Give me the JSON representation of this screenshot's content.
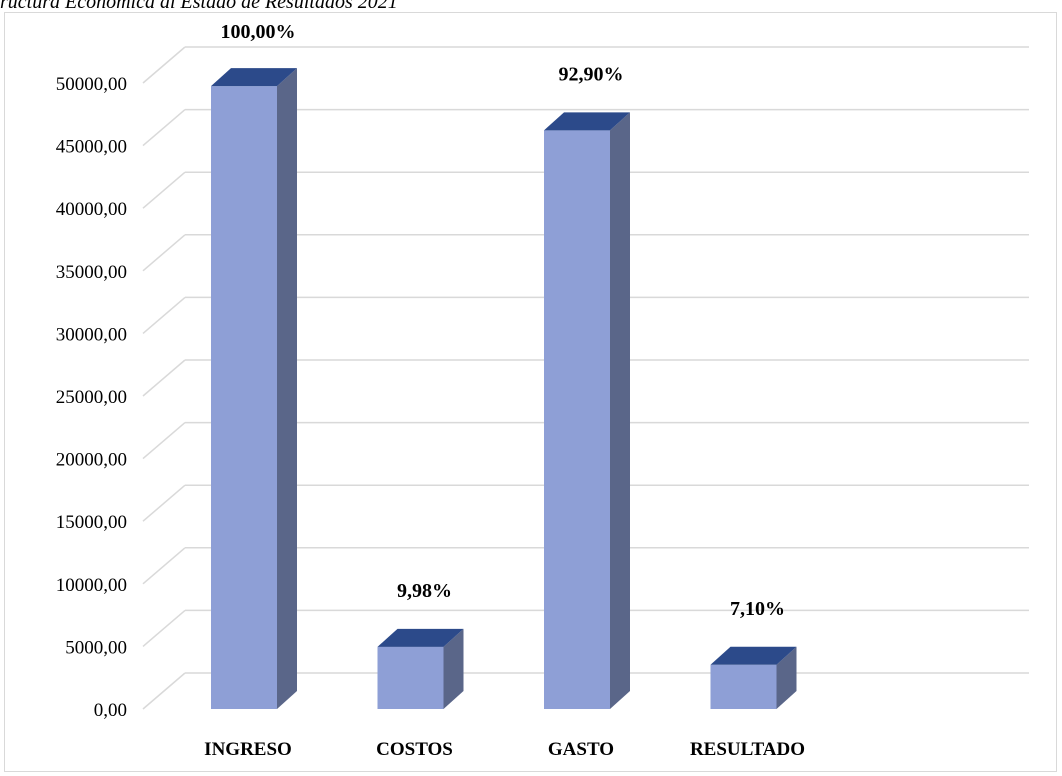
{
  "caption": "ructura Económica al Estado de Resultados 2021",
  "chart_data": {
    "type": "bar",
    "style": "3d-column",
    "title": "",
    "xlabel": "",
    "ylabel": "",
    "categories": [
      "INGRESO",
      "COSTOS",
      "GASTO",
      "RESULTADO"
    ],
    "series": [
      {
        "values": [
          49750,
          4965,
          46220,
          3530
        ],
        "data_labels": [
          "100,00%",
          "9,98%",
          "92,90%",
          "7,10%"
        ]
      }
    ],
    "ylim": [
      0,
      50000
    ],
    "y_ticks": [
      "0,00",
      "5000,00",
      "10000,00",
      "15000,00",
      "20000,00",
      "25000,00",
      "30000,00",
      "35000,00",
      "40000,00",
      "45000,00",
      "50000,00"
    ],
    "grid": true,
    "legend": "none",
    "colors": {
      "front": "#8e9fd6",
      "side": "#5a6689",
      "top": "#2c4a8a",
      "grid": "#d9d9d9"
    }
  }
}
